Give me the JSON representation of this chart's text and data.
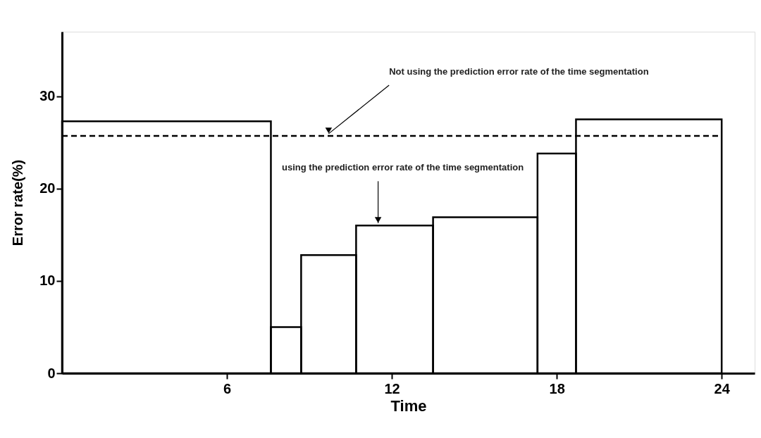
{
  "chart_data": {
    "type": "histogram",
    "xlabel": "Time",
    "ylabel": "Error rate(%)",
    "bins": [
      0,
      7.6,
      8.7,
      10.7,
      13.5,
      17.3,
      18.7,
      24
    ],
    "values": [
      27.3,
      5.0,
      12.8,
      16.0,
      16.9,
      23.8,
      27.5
    ],
    "color": "#000000",
    "xlim": [
      0,
      25.2
    ],
    "ylim": [
      0,
      37
    ],
    "xticks": [
      6,
      12,
      18,
      24
    ],
    "yticks": [
      0,
      10,
      20,
      30
    ],
    "ref_lines": [
      {
        "axis": "y",
        "value": 25.7,
        "line_style": "dashed",
        "color": "#000000"
      }
    ],
    "annotations": [
      {
        "text": "Not using the prediction error rate of the time segmentation",
        "x": 9.7,
        "y": 25.7
      },
      {
        "text": "using the prediction error rate of the time segmentation",
        "x": 11.5,
        "y": 16.0
      }
    ],
    "grid": false
  }
}
